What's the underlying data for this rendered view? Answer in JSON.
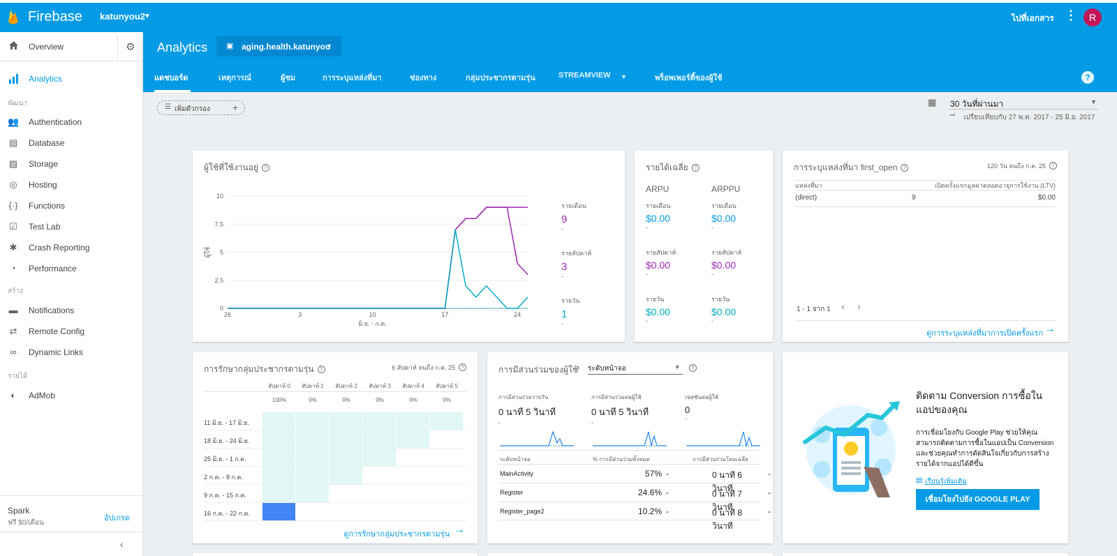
{
  "topbar": {
    "brand": "Firebase",
    "project": "katunyou2",
    "docs_label": "ไปที่เอกสาร",
    "avatar_letter": "R"
  },
  "sidebar": {
    "overview_label": "Overview",
    "active_label": "Analytics",
    "section_develop": "พัฒนา",
    "develop_items": [
      "Authentication",
      "Database",
      "Storage",
      "Hosting",
      "Functions",
      "Test Lab",
      "Crash Reporting",
      "Performance"
    ],
    "section_grow": "สร้าง",
    "grow_items": [
      "Notifications",
      "Remote Config",
      "Dynamic Links"
    ],
    "section_earn": "รายได้",
    "earn_items": [
      "AdMob"
    ],
    "plan_name": "Spark",
    "plan_price": "ฟรี $0/เดือน",
    "upgrade_label": "อัปเกรด"
  },
  "header": {
    "title": "Analytics",
    "app_selector": "aging.health.katunyou",
    "tabs": [
      "แดชบอร์ด",
      "เหตุการณ์",
      "ผู้ชม",
      "การระบุแหล่งที่มา",
      "ช่องทาง",
      "กลุ่มประชากรตามรุ่น",
      "STREAMVIEW",
      "พร็อพเพอร์ตี้ของผู้ใช้"
    ]
  },
  "filter": {
    "label": "เพิ่มตัวกรอง"
  },
  "date_range": {
    "label": "30 วันที่ผ่านมา",
    "compare": "เปรียบเทียบกับ 27 พ.ค. 2017 - 25 มิ.ย. 2017"
  },
  "active_users": {
    "title": "ผู้ใช้ที่ใช้งานอยู่",
    "monthly_label": "รายเดือน",
    "monthly_value": "9",
    "weekly_label": "รายสัปดาห์",
    "weekly_value": "3",
    "daily_label": "รายวัน",
    "daily_value": "1",
    "dash": "-"
  },
  "chart_data": {
    "type": "line",
    "title": "ผู้ใช้ที่ใช้งานอยู่",
    "ylabel": "ผู้ใช้",
    "xlabel": "มิ.ย. - ก.ค.",
    "ylim": [
      0,
      10
    ],
    "yticks": [
      "0",
      "2.5",
      "5",
      "7.5",
      "10"
    ],
    "xticks": [
      "26",
      "3",
      "10",
      "17",
      "24"
    ],
    "x": [
      0,
      1,
      2,
      3,
      4,
      5,
      6,
      7,
      8,
      9,
      10,
      11,
      12,
      13,
      14,
      15,
      16,
      17,
      18,
      19,
      20,
      21,
      22,
      23,
      24,
      25,
      26,
      27,
      28,
      29
    ],
    "series": [
      {
        "name": "รายเดือน",
        "color": "#9c27b0",
        "values": [
          0,
          0,
          0,
          0,
          0,
          0,
          0,
          0,
          0,
          0,
          0,
          0,
          0,
          0,
          0,
          0,
          0,
          0,
          0,
          0,
          0,
          0,
          7,
          8,
          8,
          9,
          9,
          9,
          9,
          9
        ]
      },
      {
        "name": "รายสัปดาห์",
        "color": "#9c27b0",
        "values": [
          0,
          0,
          0,
          0,
          0,
          0,
          0,
          0,
          0,
          0,
          0,
          0,
          0,
          0,
          0,
          0,
          0,
          0,
          0,
          0,
          0,
          0,
          7,
          8,
          8,
          9,
          9,
          9,
          4,
          3
        ]
      },
      {
        "name": "รายวัน",
        "color": "#00acc1",
        "values": [
          0,
          0,
          0,
          0,
          0,
          0,
          0,
          0,
          0,
          0,
          0,
          0,
          0,
          0,
          0,
          0,
          0,
          0,
          0,
          0,
          0,
          0,
          7,
          2,
          1,
          2,
          1,
          0,
          0,
          1
        ]
      }
    ]
  },
  "revenue": {
    "title": "รายได้เฉลี่ย",
    "arpu": "ARPU",
    "arppu": "ARPPU",
    "monthly": "รายเดือน",
    "weekly": "รายสัปดาห์",
    "daily": "รายวัน",
    "value": "$0.00",
    "dash": "-"
  },
  "attribution": {
    "title": "การระบุแหล่งที่มา first_open",
    "range": "120 วัน จนถึง ก.ค. 25",
    "col_source": "แหล่งที่มา",
    "col_first_open": "เปิดครั้งแรก",
    "col_ltv": "มูลค่าตลอดอายุการใช้งาน (LTV)",
    "rows": [
      {
        "source": "(direct)",
        "first_open": "9",
        "ltv": "$0.00"
      }
    ],
    "pagination": "1 - 1 จาก 1",
    "link": "ดูการระบุแหล่งที่มาการเปิดครั้งแรก"
  },
  "retention": {
    "title": "การรักษากลุ่มประชากรตามรุ่น",
    "range": "6 สัปดาห์ จนถึง ก.ค. 25",
    "columns": [
      "สัปดาห์ 0",
      "สัปดาห์ 1",
      "สัปดาห์ 2",
      "สัปดาห์ 3",
      "สัปดาห์ 4",
      "สัปดาห์ 5"
    ],
    "percents": [
      "100%",
      "0%",
      "0%",
      "0%",
      "0%",
      "0%"
    ],
    "rows": [
      "11 มิ.ย. - 17 มิ.ย.",
      "18 มิ.ย. - 24 มิ.ย.",
      "25 มิ.ย. - 1 ก.ค.",
      "2 ก.ค. - 8 ก.ค.",
      "9 ก.ค. - 15 ก.ค.",
      "16 ก.ค. - 22 ก.ค."
    ],
    "link": "ดูการรักษากลุ่มประชากรตามรุ่น"
  },
  "engagement": {
    "title": "การมีส่วนร่วมของผู้ใช้",
    "selector": "ระดับหน้าจอ",
    "stats": [
      {
        "label": "การมีส่วนร่วมรายวัน",
        "value": "0 นาที 5 วินาที",
        "dash": "-"
      },
      {
        "label": "การมีส่วนร่วมต่อผู้ใช้",
        "value": "0 นาที 5 วินาที",
        "dash": "-"
      },
      {
        "label": "เซสชันต่อผู้ใช้",
        "value": "0",
        "dash": "-"
      }
    ],
    "col_screen": "ระดับหน้าจอ",
    "col_pct": "% การมีส่วนร่วมทั้งหมด",
    "col_avg": "การมีส่วนร่วมโดยเฉลี่ย",
    "rows": [
      {
        "screen": "MainActivity",
        "pct": "57%",
        "avg": "0 นาที 6 วินาที"
      },
      {
        "screen": "Register",
        "pct": "24.6%",
        "avg": "0 นาที 7 วินาที"
      },
      {
        "screen": "Register_page2",
        "pct": "10.2%",
        "avg": "0 นาที 8 วินาที"
      }
    ],
    "dash": "-"
  },
  "conversion": {
    "title": "ติดตาม Conversion การซื้อในแอปของคุณ",
    "body": "การเชื่อมโยงกับ Google Play ช่วยให้คุณสามารถติดตามการซื้อในแอปเป็น Conversion และช่วยคุณทำการตัดสินใจเกี่ยวกับการสร้างรายได้จากแอปได้ดีขึ้น",
    "learn_more": "เรียนรู้เพิ่มเติม",
    "button": "เชื่อมโยงไปยัง GOOGLE PLAY"
  }
}
